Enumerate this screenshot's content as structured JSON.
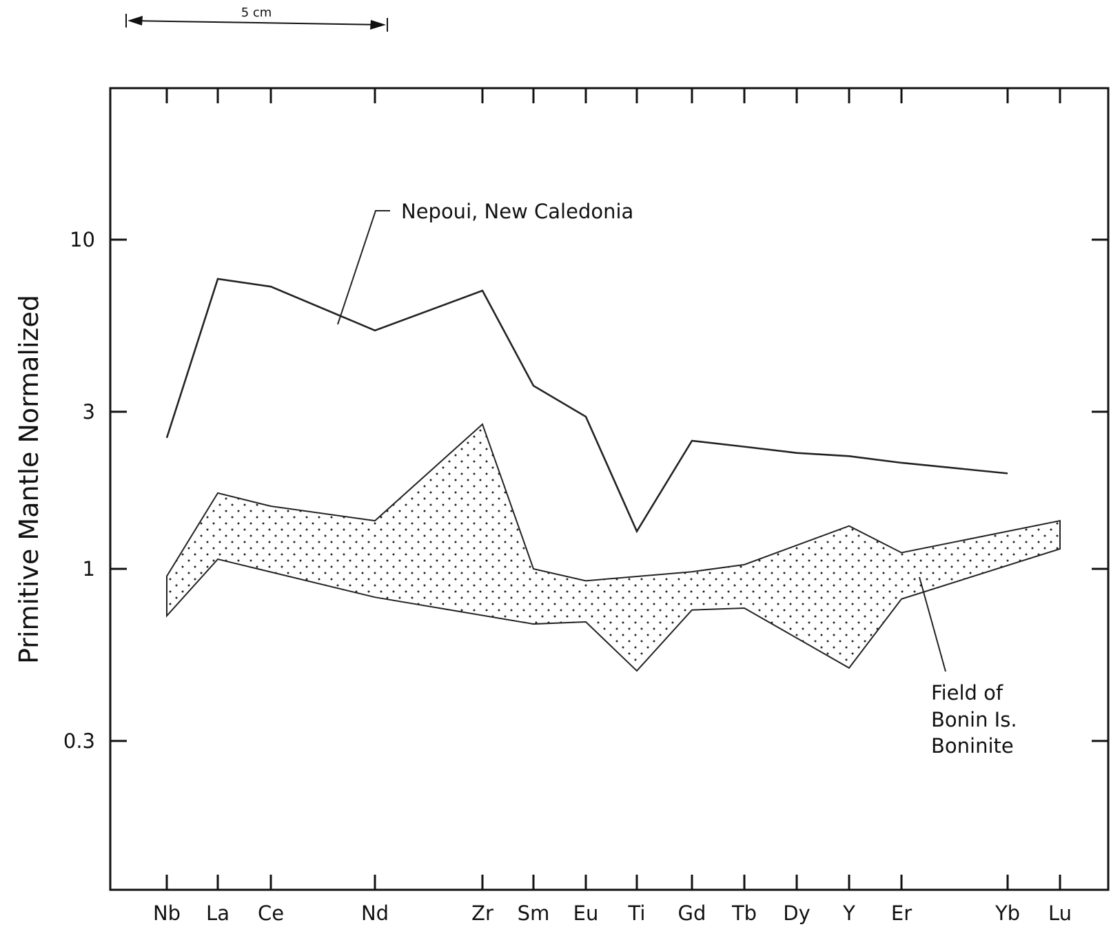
{
  "scale_bar": {
    "label": "5 cm"
  },
  "chart_data": {
    "type": "line",
    "title": "",
    "xlabel": "",
    "ylabel": "Primitive Mantle Normalized",
    "y_scale": "log",
    "ylim": [
      0.1,
      30
    ],
    "yticks": [
      10,
      3,
      1,
      0.3
    ],
    "ytick_labels": [
      "10",
      "3",
      "1",
      "0.3"
    ],
    "categories": [
      "Nb",
      "La",
      "Ce",
      "Nd",
      "Zr",
      "Sm",
      "Eu",
      "Ti",
      "Gd",
      "Tb",
      "Dy",
      "Y",
      "Er",
      "Yb",
      "Lu"
    ],
    "series": [
      {
        "name": "Nepoui, New Caledonia",
        "values": [
          2.5,
          7.6,
          7.2,
          5.3,
          7.0,
          3.6,
          2.9,
          1.3,
          2.45,
          2.35,
          2.25,
          2.2,
          2.1,
          1.95,
          null
        ]
      }
    ],
    "field": {
      "name": "Field of Bonin Is. Boninite",
      "fill": "stippled",
      "upper": [
        0.95,
        1.7,
        1.55,
        1.4,
        2.75,
        1.0,
        0.92,
        null,
        0.98,
        1.03,
        null,
        1.35,
        1.12,
        null,
        1.4
      ],
      "lower": [
        0.72,
        1.07,
        null,
        0.82,
        null,
        0.68,
        0.69,
        0.49,
        0.75,
        0.76,
        null,
        0.5,
        0.81,
        null,
        1.15
      ]
    },
    "annotations": [
      {
        "text": "Nepoui, New Caledonia"
      },
      {
        "text": "Field of Bonin Is. Boninite",
        "lines": [
          "Field of",
          "Bonin Is.",
          "Boninite"
        ]
      }
    ],
    "colors": {
      "line": "#222222",
      "axis": "#111111"
    },
    "grid": false,
    "legend": "none"
  }
}
